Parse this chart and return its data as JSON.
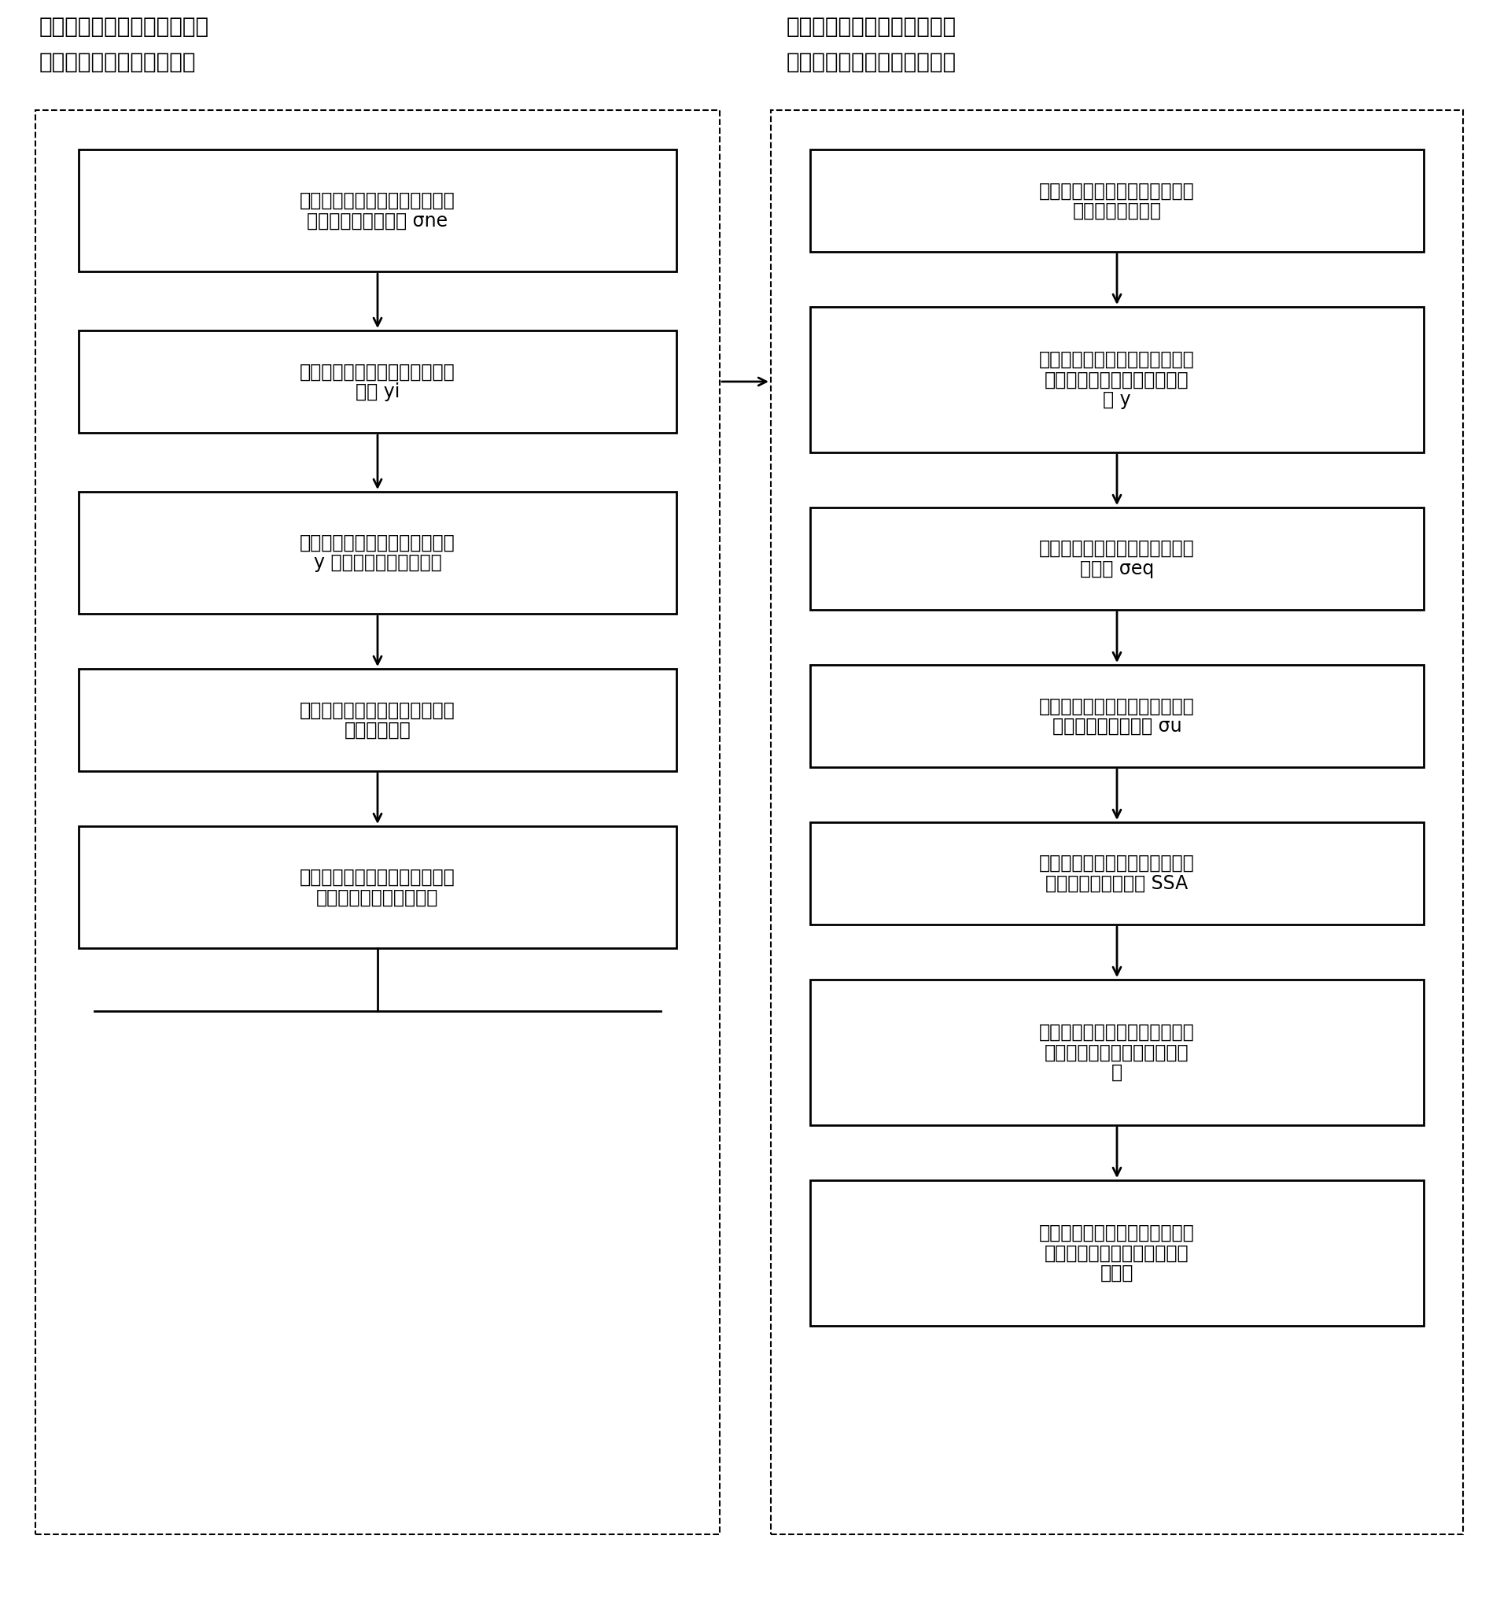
{
  "title_left_line1": "第一流程：等效应力修正系数",
  "title_left_line2": "人工神经网络的学习与训练",
  "title_right_line1": "第二流程：等效应力安全裕度",
  "title_right_line2": "系数的在线计算、监视与控制",
  "left_boxes": [
    "第一步：采用简化模型计算转子\n外表面名义等效应力 σne",
    "第二步：确定瞬态等效应力修正\n系数 yi",
    "第三步：建立等效应力修正系数\ny 的计算的人工神经网络",
    "第四步：确定人工神经网络的连\n接权值及阈值",
    "第五步：编写计算等效应力修正\n系数的人工神经网络软件"
  ],
  "right_boxes": [
    "第六步：采用简化模型在线实时\n计算名义等效应力",
    "第七步：使用人工神经网络技术\n在线实时计算等效应力修正系\n数 y",
    "第八步：在线实时计算等效应力\n监视值 σeq",
    "第九步：在线实时计算汽轮机转\n子材料控制极限应力 σu",
    "第十步：在线实时计算汽轮机转\n子应力安全裕度系数 SSA",
    "第十一步：汽轮机转子等效应力\n安全裕度系数的在线监视与控\n制",
    "第十二步：汽轮机转子等效应力\n安全裕度系数的在线报警和打\n闸停机"
  ],
  "left_boxes_sub": [
    [
      "第一步：采用简化模型计算转子",
      "外表面名义等效应力 σ",
      "ne",
      ""
    ],
    [
      "第二步：确定瞬态等效应力修正",
      "系数 y",
      "i",
      ""
    ],
    [
      "第三步：建立等效应力修正系数",
      "y 的计算的人工神经网络",
      "",
      ""
    ],
    [
      "第四步：确定人工神经网络的连",
      "接权值及阈值",
      "",
      ""
    ],
    [
      "第五步：编写计算等效应力修正",
      "系数的人工神经网络软件",
      "",
      ""
    ]
  ],
  "right_boxes_sub": [
    [
      "第六步：采用简化模型在线实时",
      "计算名义等效应力",
      "",
      ""
    ],
    [
      "第七步：使用人工神经网络技术",
      "在线实时计算等效应力修正系",
      "数 y",
      ""
    ],
    [
      "第八步：在线实时计算等效应力",
      "监视值 σ",
      "eq",
      ""
    ],
    [
      "第九步：在线实时计算汽轮机转",
      "子材料控制极限应力 σ",
      "u",
      ""
    ],
    [
      "第十步：在线实时计算汽轮机转",
      "子应力安全裕度系数 S",
      "SA",
      ""
    ],
    [
      "第十一步：汽轮机转子等效应力",
      "安全裕度系数的在线监视与控",
      "制",
      ""
    ],
    [
      "第十二步：汽轮机转子等效应力",
      "安全裕度系数的在线报警和打",
      "闸停机",
      ""
    ]
  ],
  "bg_color": "#ffffff",
  "box_facecolor": "#ffffff",
  "box_edgecolor": "#000000",
  "outer_dashed_color": "#000000",
  "arrow_color": "#000000",
  "text_color": "#000000"
}
